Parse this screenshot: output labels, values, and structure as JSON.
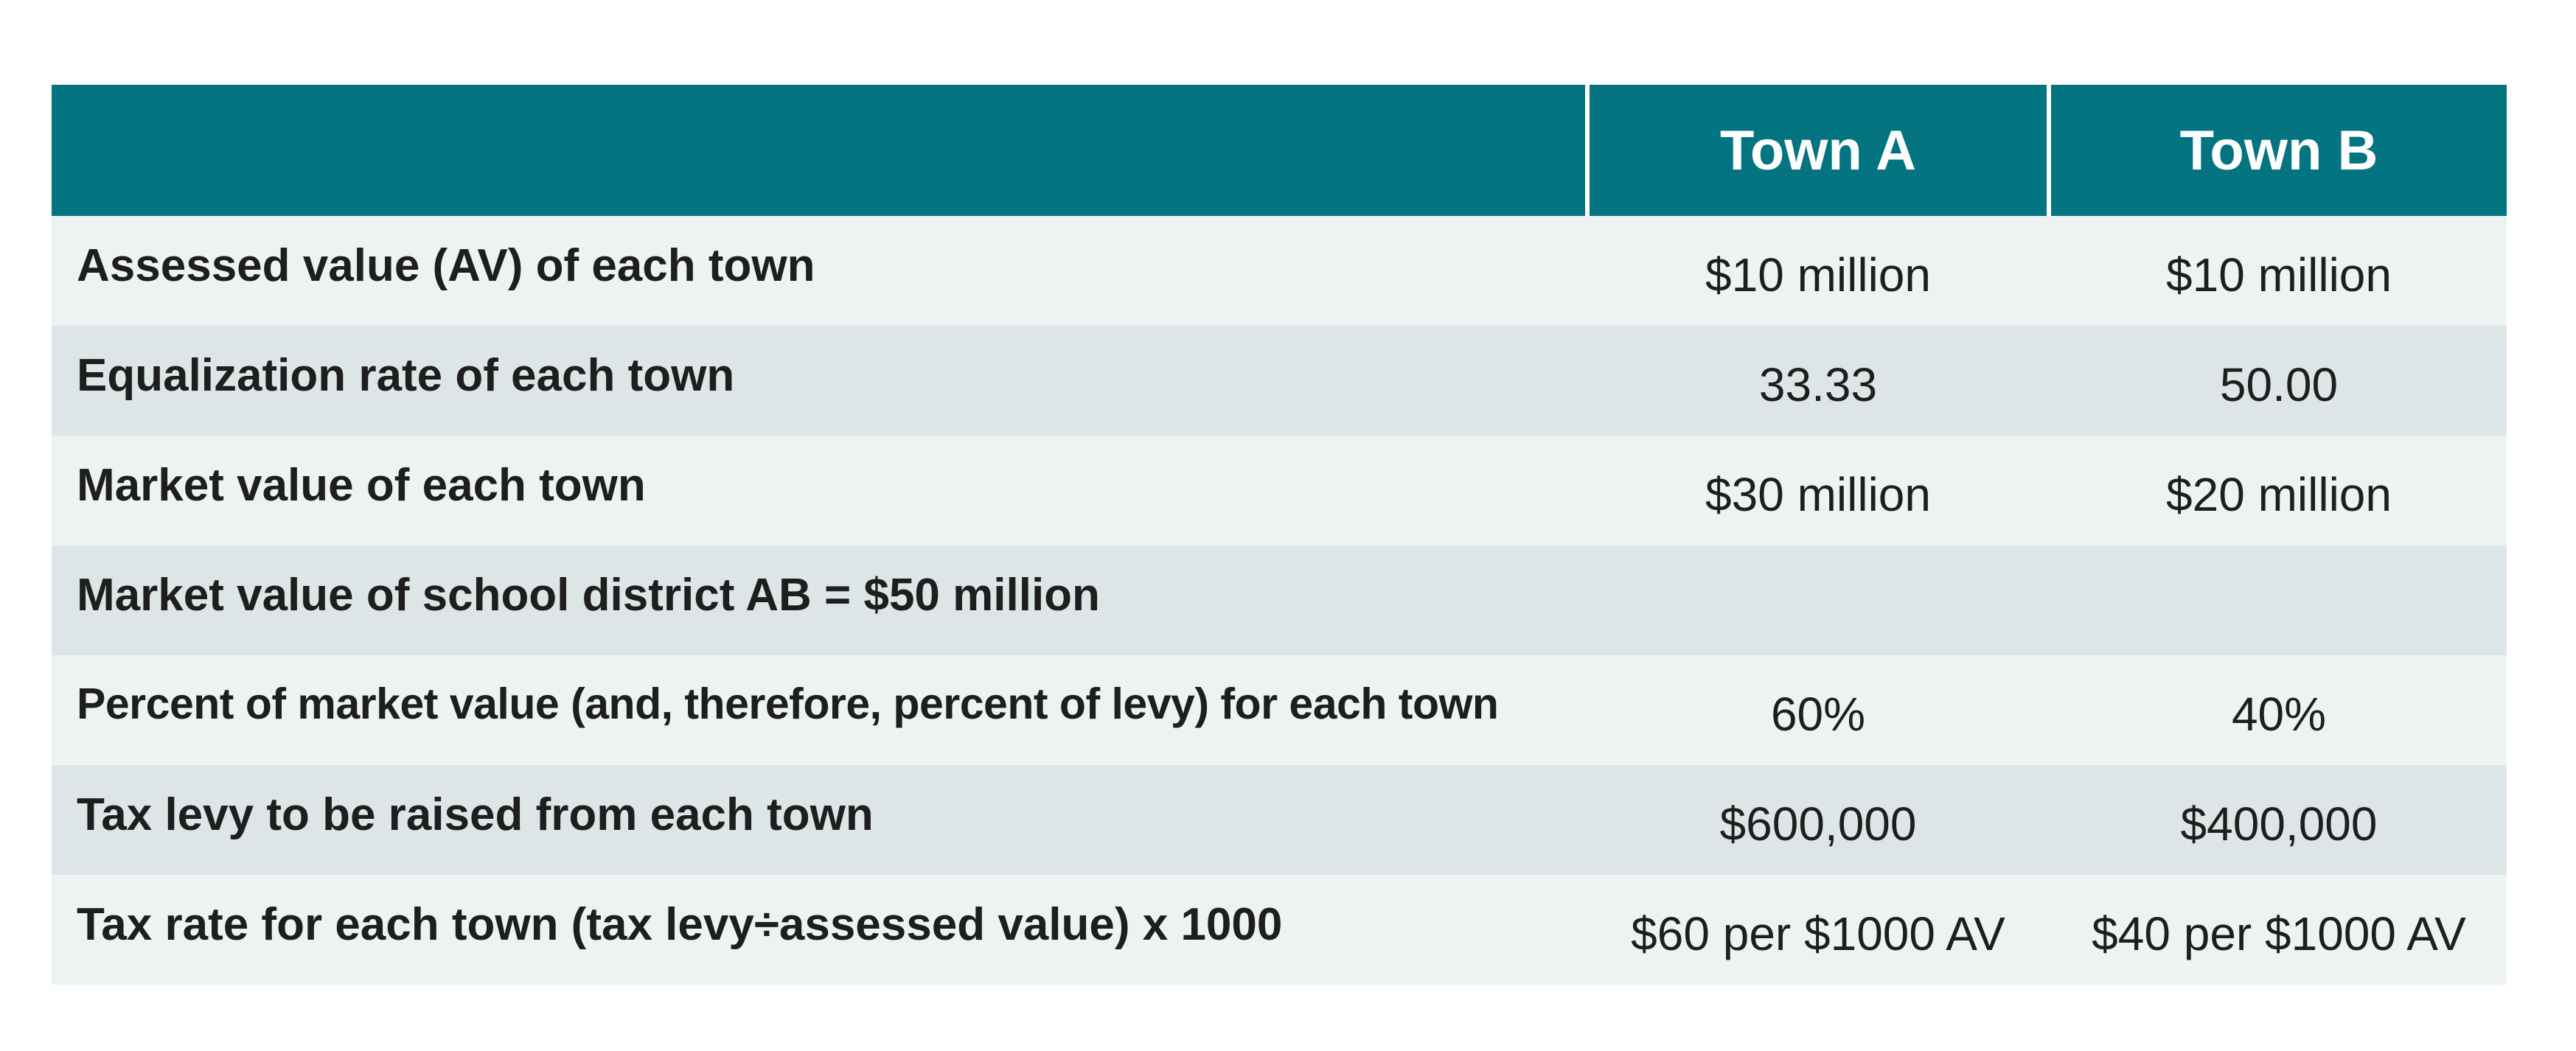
{
  "header": {
    "label_col": "",
    "col_a": "Town A",
    "col_b": "Town B"
  },
  "rows": [
    {
      "label": "Assessed value (AV) of each town",
      "a": "$10 million",
      "b": "$10 million"
    },
    {
      "label": "Equalization rate of each town",
      "a": "33.33",
      "b": "50.00"
    },
    {
      "label": "Market value of each town",
      "a": "$30 million",
      "b": "$20 million"
    },
    {
      "label": "Market value of school district AB = $50 million",
      "a": "",
      "b": ""
    },
    {
      "label": "Percent of market value (and, therefore, percent of levy) for each town",
      "a": "60%",
      "b": "40%"
    },
    {
      "label": "Tax levy to be raised from each town",
      "a": "$600,000",
      "b": "$400,000"
    },
    {
      "label": "Tax rate for each town (tax levy÷assessed value) x 1000",
      "a": "$60 per $1000 AV",
      "b": "$40 per $1000 AV"
    }
  ],
  "colors": {
    "header_bg": "#037480",
    "row_light": "#edf3f3",
    "row_dark": "#dde5e7"
  }
}
